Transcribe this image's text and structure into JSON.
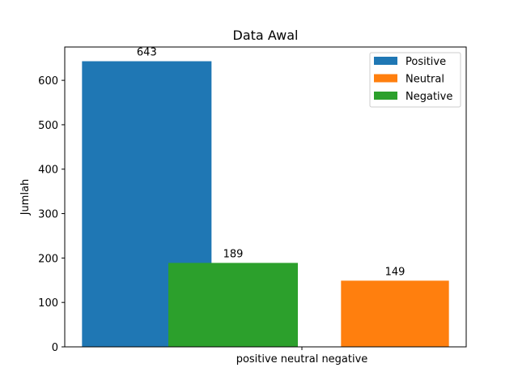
{
  "chart_data": {
    "type": "bar",
    "title": "Data Awal",
    "ylabel": "Jumlah",
    "xlabel": "",
    "category_label": "positive neutral negative",
    "ylim": [
      0,
      675
    ],
    "yticks": [
      0,
      100,
      200,
      300,
      400,
      500,
      600
    ],
    "grid": false,
    "legend_position": "top-right",
    "series": [
      {
        "name": "Positive",
        "value": 643,
        "color": "#1f77b4",
        "x_start": -0.6,
        "x_end": 0.0
      },
      {
        "name": "Neutral",
        "value": 149,
        "color": "#ff7f0e",
        "x_start": 0.6,
        "x_end": 1.1
      },
      {
        "name": "Negative",
        "value": 189,
        "color": "#2ca02c",
        "x_start": -0.2,
        "x_end": 0.4
      }
    ],
    "xlim": [
      -0.68,
      1.18
    ]
  }
}
